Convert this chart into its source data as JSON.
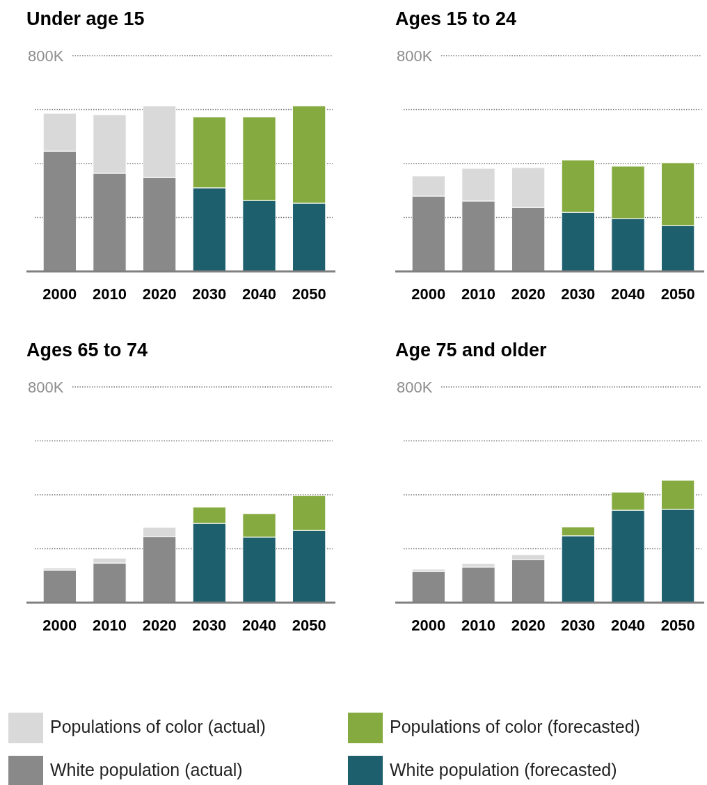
{
  "chart_data": [
    {
      "type": "bar",
      "title": "Under age 15",
      "categories": [
        "2000",
        "2010",
        "2020",
        "2030",
        "2040",
        "2050"
      ],
      "stacked": true,
      "ylim": [
        0,
        800000
      ],
      "yticks": [
        {
          "value": 0,
          "label": null
        },
        {
          "value": 200000,
          "label": null
        },
        {
          "value": 400000,
          "label": null
        },
        {
          "value": 600000,
          "label": null
        },
        {
          "value": 800000,
          "label": "800K"
        }
      ],
      "grid": "y",
      "series": [
        {
          "color": "#898989",
          "values": [
            446000,
            364000,
            348000,
            null,
            null,
            null
          ]
        },
        {
          "color": "#1e5f6e",
          "values": [
            null,
            null,
            null,
            310000,
            263000,
            253000
          ]
        },
        {
          "color": "#d9d9d9",
          "values": [
            140000,
            217000,
            266000,
            null,
            null,
            null
          ]
        },
        {
          "color": "#84aa40",
          "values": [
            null,
            null,
            null,
            263000,
            310000,
            361000
          ]
        }
      ]
    },
    {
      "type": "bar",
      "title": "Ages 15 to 24",
      "categories": [
        "2000",
        "2010",
        "2020",
        "2030",
        "2040",
        "2050"
      ],
      "stacked": true,
      "ylim": [
        0,
        800000
      ],
      "yticks": [
        {
          "value": 0,
          "label": null
        },
        {
          "value": 200000,
          "label": null
        },
        {
          "value": 400000,
          "label": null
        },
        {
          "value": 600000,
          "label": null
        },
        {
          "value": 800000,
          "label": "800K"
        }
      ],
      "grid": "y",
      "series": [
        {
          "color": "#898989",
          "values": [
            279000,
            261000,
            237000,
            null,
            null,
            null
          ]
        },
        {
          "color": "#1e5f6e",
          "values": [
            null,
            null,
            null,
            219000,
            196000,
            170000
          ]
        },
        {
          "color": "#d9d9d9",
          "values": [
            75000,
            121000,
            148000,
            null,
            null,
            null
          ]
        },
        {
          "color": "#84aa40",
          "values": [
            null,
            null,
            null,
            194000,
            194000,
            233000
          ]
        }
      ]
    },
    {
      "type": "bar",
      "title": "Ages 65 to 74",
      "categories": [
        "2000",
        "2010",
        "2020",
        "2030",
        "2040",
        "2050"
      ],
      "stacked": true,
      "ylim": [
        0,
        800000
      ],
      "yticks": [
        {
          "value": 0,
          "label": null
        },
        {
          "value": 200000,
          "label": null
        },
        {
          "value": 400000,
          "label": null
        },
        {
          "value": 600000,
          "label": null
        },
        {
          "value": 800000,
          "label": "800K"
        }
      ],
      "grid": "y",
      "series": [
        {
          "color": "#898989",
          "values": [
            121000,
            147000,
            245000,
            null,
            null,
            null
          ]
        },
        {
          "color": "#1e5f6e",
          "values": [
            null,
            null,
            null,
            294000,
            243000,
            268000
          ]
        },
        {
          "color": "#d9d9d9",
          "values": [
            8000,
            18000,
            34000,
            null,
            null,
            null
          ]
        },
        {
          "color": "#84aa40",
          "values": [
            null,
            null,
            null,
            60000,
            87000,
            129000
          ]
        }
      ]
    },
    {
      "type": "bar",
      "title": "Age 75 and older",
      "categories": [
        "2000",
        "2010",
        "2020",
        "2030",
        "2040",
        "2050"
      ],
      "stacked": true,
      "ylim": [
        0,
        800000
      ],
      "yticks": [
        {
          "value": 0,
          "label": null
        },
        {
          "value": 200000,
          "label": null
        },
        {
          "value": 400000,
          "label": null
        },
        {
          "value": 600000,
          "label": null
        },
        {
          "value": 800000,
          "label": "800K"
        }
      ],
      "grid": "y",
      "legend": "bottom",
      "series": [
        {
          "name": "White population (actual)",
          "color": "#898989",
          "values": [
            116000,
            132000,
            160000,
            null,
            null,
            null
          ]
        },
        {
          "name": "White population (forecasted)",
          "color": "#1e5f6e",
          "values": [
            null,
            null,
            null,
            248000,
            343000,
            346000
          ]
        },
        {
          "name": "Populations of color (actual)",
          "color": "#d9d9d9",
          "values": [
            8000,
            13000,
            18000,
            null,
            null,
            null
          ]
        },
        {
          "name": "Populations of color (forecasted)",
          "color": "#84aa40",
          "values": [
            null,
            null,
            null,
            33000,
            67000,
            108000
          ]
        }
      ]
    }
  ]
}
